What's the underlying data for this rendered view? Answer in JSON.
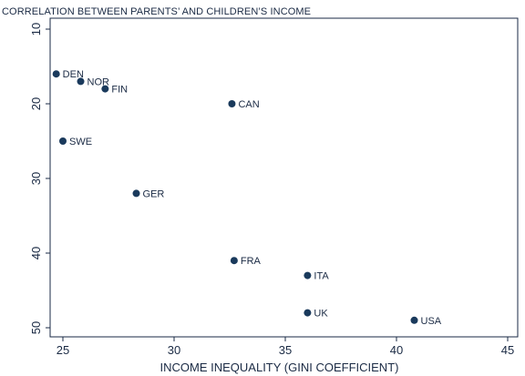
{
  "colors": {
    "marker": "#1a3a5c",
    "axis": "#1a2a44",
    "text": "#1a2a44",
    "background": "#ffffff"
  },
  "chart_data": {
    "type": "scatter",
    "title": "CORRELATION BETWEEN PARENTS’ AND CHILDREN’S INCOME",
    "xlabel": "INCOME  INEQUALITY  (GINI COEFFICIENT)",
    "ylabel": "",
    "xlim": [
      24.5,
      45
    ],
    "ylim": [
      10,
      51
    ],
    "y_inverted": true,
    "grid": false,
    "x_ticks": [
      25,
      30,
      35,
      40,
      45
    ],
    "y_ticks": [
      10,
      20,
      30,
      40,
      50
    ],
    "x_tick_labels": [
      "25",
      "30",
      "35",
      "40",
      "45"
    ],
    "y_tick_labels": [
      "10",
      "20",
      "30",
      "40",
      "50"
    ],
    "points": [
      {
        "label": "DEN",
        "x": 24.7,
        "y": 16
      },
      {
        "label": "NOR",
        "x": 25.8,
        "y": 17
      },
      {
        "label": "FIN",
        "x": 26.9,
        "y": 18
      },
      {
        "label": "CAN",
        "x": 32.6,
        "y": 20
      },
      {
        "label": "SWE",
        "x": 25.0,
        "y": 25
      },
      {
        "label": "GER",
        "x": 28.3,
        "y": 32
      },
      {
        "label": "FRA",
        "x": 32.7,
        "y": 41
      },
      {
        "label": "ITA",
        "x": 36.0,
        "y": 43
      },
      {
        "label": "UK",
        "x": 36.0,
        "y": 48
      },
      {
        "label": "USA",
        "x": 40.8,
        "y": 49
      }
    ]
  }
}
